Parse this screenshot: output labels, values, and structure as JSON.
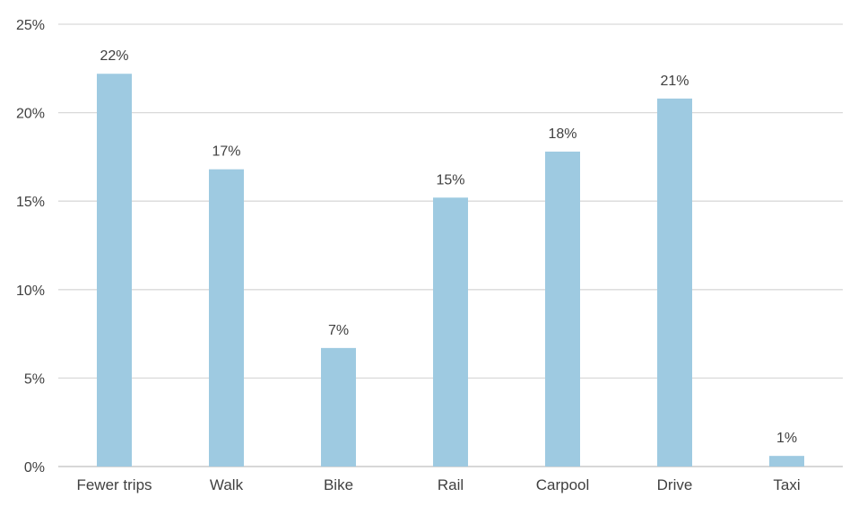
{
  "chart_data": {
    "type": "bar",
    "title": "",
    "xlabel": "",
    "ylabel": "",
    "categories": [
      "Fewer trips",
      "Walk",
      "Bike",
      "Rail",
      "Carpool",
      "Drive",
      "Taxi"
    ],
    "values": [
      22.2,
      16.8,
      6.7,
      15.2,
      17.8,
      20.8,
      0.6
    ],
    "data_labels": [
      "22%",
      "17%",
      "7%",
      "15%",
      "18%",
      "21%",
      "1%"
    ],
    "ylim": [
      0,
      25
    ],
    "yticks": [
      0,
      5,
      10,
      15,
      20,
      25
    ],
    "ytick_labels": [
      "0%",
      "5%",
      "10%",
      "15%",
      "20%",
      "25%"
    ],
    "grid": true,
    "legend": "none",
    "bar_color": "#9ecae1"
  }
}
